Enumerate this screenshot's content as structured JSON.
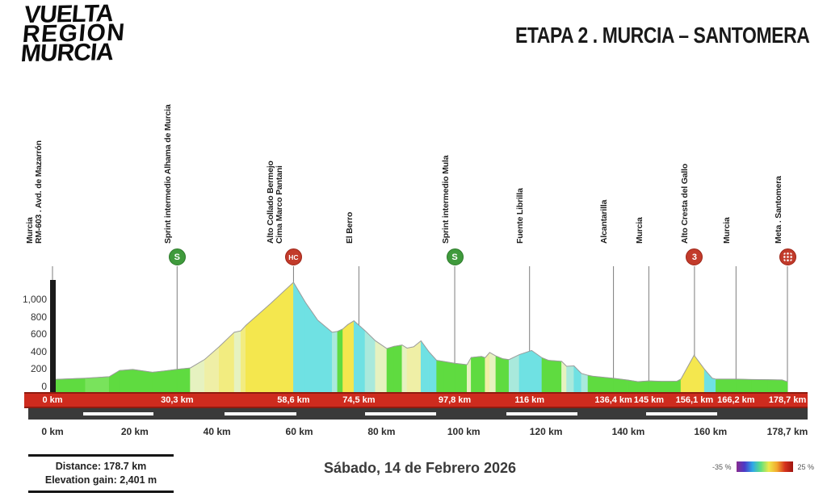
{
  "logo": {
    "lines": [
      "VUELTA",
      "REGION",
      "MURCIA"
    ]
  },
  "header": {
    "title": "ETAPA 2 . MURCIA – SANTOMERA"
  },
  "chart_data": {
    "type": "area",
    "title": "Stage elevation profile",
    "x_unit": "km",
    "y_unit": "m",
    "xlim": [
      0,
      178.7
    ],
    "ylim": [
      0,
      1200
    ],
    "y_ticks": [
      0,
      200,
      400,
      600,
      800,
      1000
    ],
    "y_tick_labels": [
      "0",
      "200",
      "400",
      "600",
      "800",
      "1,000"
    ],
    "x_axis_values": [
      0,
      20,
      40,
      60,
      80,
      100,
      120,
      140,
      160,
      178.7
    ],
    "x_axis_labels": [
      "0 km",
      "20 km",
      "40 km",
      "60 km",
      "80 km",
      "100 km",
      "120 km",
      "140 km",
      "160 km",
      "178,7 km"
    ],
    "palette": {
      "green": "#5FDB40",
      "green2": "#79E35C",
      "cream": "#E6F2C0",
      "cream2": "#EFEFA6",
      "paleyellow": "#F2EC80",
      "yellow": "#F4E74E",
      "cyan": "#6FE1E3",
      "lightcyan": "#A9E9DC"
    },
    "profile": {
      "points_km": [
        0,
        8,
        13.8,
        16.3,
        19.5,
        24.3,
        27.5,
        30.3,
        33.5,
        37,
        40.5,
        44.2,
        45.8,
        47,
        53,
        58.6,
        61.5,
        64.5,
        68,
        69.3,
        70.6,
        71.8,
        73.3,
        76,
        78.5,
        81.3,
        83,
        85,
        86.2,
        87.8,
        89.6,
        91.5,
        93.4,
        95,
        97.8,
        100.8,
        101.8,
        104.3,
        105.2,
        106.3,
        107.8,
        109.5,
        111,
        113.5,
        116.5,
        119,
        120.6,
        123.8,
        125,
        126.8,
        128.6,
        130.2,
        131.3,
        136.4,
        140,
        142.4,
        145,
        148,
        151.8,
        152.8,
        156,
        158.5,
        160.4,
        161.3,
        166.2,
        170,
        174,
        177.4,
        178.7
      ],
      "points_m": [
        80,
        95,
        112,
        183,
        195,
        163,
        180,
        197,
        212,
        310,
        455,
        622,
        638,
        700,
        950,
        1195,
        965,
        760,
        622,
        632,
        660,
        710,
        753,
        640,
        525,
        435,
        460,
        476,
        440,
        455,
        523,
        400,
        300,
        288,
        266,
        250,
        333,
        345,
        330,
        390,
        350,
        318,
        308,
        365,
        413,
        330,
        300,
        288,
        232,
        236,
        150,
        128,
        118,
        94,
        73,
        55,
        64,
        59,
        60,
        85,
        358,
        200,
        95,
        84,
        84,
        80,
        78,
        75,
        54
      ],
      "segment_colors": [
        "green",
        "green2",
        "green",
        "green",
        "green",
        "green",
        "green",
        "green",
        "cream",
        "cream2",
        "paleyellow",
        "cream",
        "paleyellow",
        "yellow",
        "yellow",
        "cyan",
        "cyan",
        "cyan",
        "lightcyan",
        "green",
        "yellow",
        "yellow",
        "cyan",
        "lightcyan",
        "cream",
        "green",
        "green",
        "cream",
        "cream2",
        "cream2",
        "cyan",
        "cyan",
        "green",
        "green",
        "green",
        "cream",
        "green",
        "green",
        "cream2",
        "cream",
        "green",
        "green",
        "lightcyan",
        "cyan",
        "cyan",
        "green",
        "green",
        "cream",
        "lightcyan",
        "cyan",
        "lightcyan",
        "green",
        "green",
        "green",
        "green",
        "green",
        "green",
        "green",
        "green",
        "yellow",
        "yellow",
        "cyan",
        "cyan",
        "green",
        "green",
        "green",
        "green",
        "green",
        "green"
      ]
    },
    "waypoints": [
      {
        "km": 0,
        "km_label": "0 km",
        "lines": [
          "Murcia",
          "RM-603 . Avd. de Mazarrón"
        ],
        "icon": "none"
      },
      {
        "km": 30.3,
        "km_label": "30,3 km",
        "lines": [
          "Sprint intermedio Alhama de Murcia"
        ],
        "icon": "sprint"
      },
      {
        "km": 58.6,
        "km_label": "58,6 km",
        "lines": [
          "Alto Collado Bermejo",
          "Cima Marco Pantani"
        ],
        "icon": "hc"
      },
      {
        "km": 74.5,
        "km_label": "74,5 km",
        "lines": [
          "El Berro"
        ],
        "icon": "none"
      },
      {
        "km": 97.8,
        "km_label": "97,8 km",
        "lines": [
          "Sprint intermedio Mula"
        ],
        "icon": "sprint"
      },
      {
        "km": 116,
        "km_label": "116 km",
        "lines": [
          "Fuente Librilla"
        ],
        "icon": "none"
      },
      {
        "km": 136.4,
        "km_label": "136,4 km",
        "lines": [
          "Alcantarilla"
        ],
        "icon": "none"
      },
      {
        "km": 145,
        "km_label": "145 km",
        "lines": [
          "Murcia"
        ],
        "icon": "none"
      },
      {
        "km": 156.1,
        "km_label": "156,1 km",
        "lines": [
          "Alto Cresta del Gallo"
        ],
        "icon": "cat3"
      },
      {
        "km": 166.2,
        "km_label": "166,2 km",
        "lines": [
          "Murcia"
        ],
        "icon": "none"
      },
      {
        "km": 178.7,
        "km_label": "178,7 km",
        "lines": [
          "Meta . Santomera"
        ],
        "icon": "finish"
      }
    ],
    "icon_text": {
      "sprint": "S",
      "hc": "HC",
      "cat3": "3",
      "finish": ""
    },
    "gradient_legend": {
      "min_label": "-35 %",
      "max_label": "25 %",
      "colors": [
        "#8A2B8F",
        "#4A3BC8",
        "#2FA8E8",
        "#5FE080",
        "#EDE84A",
        "#F2A92E",
        "#D6321E",
        "#9E1410"
      ]
    }
  },
  "footer": {
    "distance_label": "Distance: 178.7 km",
    "elevation_label": "Elevation gain: 2,401 m",
    "date": "Sábado, 14 de Febrero 2026"
  }
}
